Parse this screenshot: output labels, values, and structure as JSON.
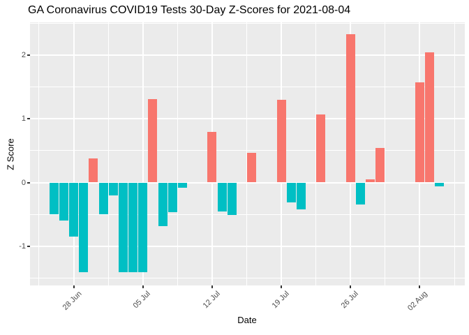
{
  "title": "GA Coronavirus COVID19 Tests 30-Day Z-Scores for 2021-08-04",
  "chart_data": {
    "type": "bar",
    "title": "GA Coronavirus COVID19 Tests 30-Day Z-Scores for 2021-08-04",
    "xlabel": "Date",
    "ylabel": "Z Score",
    "ylim": [
      -1.62,
      2.53
    ],
    "grid": "on",
    "legend": "none",
    "y_ticks": [
      {
        "value": 2,
        "label": "2"
      },
      {
        "value": 1,
        "label": "1"
      },
      {
        "value": 0,
        "label": "0"
      },
      {
        "value": -1,
        "label": "-1"
      }
    ],
    "y_minor_values": [
      2.5,
      1.5,
      0.5,
      -0.5,
      -1.5
    ],
    "x_ticks": [
      {
        "day": 2,
        "label": "28 Jun"
      },
      {
        "day": 9,
        "label": "05 Jul"
      },
      {
        "day": 16,
        "label": "12 Jul"
      },
      {
        "day": 23,
        "label": "19 Jul"
      },
      {
        "day": 30,
        "label": "26 Jul"
      },
      {
        "day": 37,
        "label": "02 Aug"
      }
    ],
    "x_minor_days": [
      -1.5,
      5.5,
      12.5,
      19.5,
      26.5,
      33.5,
      40.5
    ],
    "series": [
      {
        "date": "26 Jun",
        "value": -0.5
      },
      {
        "date": "27 Jun",
        "value": -0.6
      },
      {
        "date": "28 Jun",
        "value": -0.85
      },
      {
        "date": "29 Jun",
        "value": -1.41
      },
      {
        "date": "30 Jun",
        "value": 0.38
      },
      {
        "date": "01 Jul",
        "value": -0.5
      },
      {
        "date": "02 Jul",
        "value": -0.2
      },
      {
        "date": "03 Jul",
        "value": -1.41
      },
      {
        "date": "04 Jul",
        "value": -1.41
      },
      {
        "date": "05 Jul",
        "value": -1.41
      },
      {
        "date": "06 Jul",
        "value": 1.31
      },
      {
        "date": "07 Jul",
        "value": -0.68
      },
      {
        "date": "08 Jul",
        "value": -0.47
      },
      {
        "date": "09 Jul",
        "value": -0.08
      },
      {
        "date": "10 Jul",
        "value": 0
      },
      {
        "date": "11 Jul",
        "value": 0
      },
      {
        "date": "12 Jul",
        "value": 0.79
      },
      {
        "date": "13 Jul",
        "value": -0.45
      },
      {
        "date": "14 Jul",
        "value": -0.51
      },
      {
        "date": "15 Jul",
        "value": 0
      },
      {
        "date": "16 Jul",
        "value": 0.47
      },
      {
        "date": "17 Jul",
        "value": 0
      },
      {
        "date": "18 Jul",
        "value": 0
      },
      {
        "date": "19 Jul",
        "value": 1.3
      },
      {
        "date": "20 Jul",
        "value": -0.31
      },
      {
        "date": "21 Jul",
        "value": -0.42
      },
      {
        "date": "22 Jul",
        "value": 0
      },
      {
        "date": "23 Jul",
        "value": 1.07
      },
      {
        "date": "24 Jul",
        "value": 0
      },
      {
        "date": "25 Jul",
        "value": 0
      },
      {
        "date": "26 Jul",
        "value": 2.33
      },
      {
        "date": "27 Jul",
        "value": -0.34
      },
      {
        "date": "28 Jul",
        "value": 0.05
      },
      {
        "date": "29 Jul",
        "value": 0.54
      },
      {
        "date": "30 Jul",
        "value": 0
      },
      {
        "date": "31 Jul",
        "value": 0
      },
      {
        "date": "01 Aug",
        "value": 0
      },
      {
        "date": "02 Aug",
        "value": 1.57
      },
      {
        "date": "03 Aug",
        "value": 2.05
      },
      {
        "date": "04 Aug",
        "value": -0.06
      }
    ],
    "colors": {
      "positive": "#F8766D",
      "negative": "#00BFC4",
      "panel_bg": "#EBEBEB",
      "grid": "#FFFFFF",
      "tick_text": "#4D4D4D",
      "tick_mark": "#333333",
      "title_text": "#000000",
      "background": "#FFFFFF"
    }
  }
}
